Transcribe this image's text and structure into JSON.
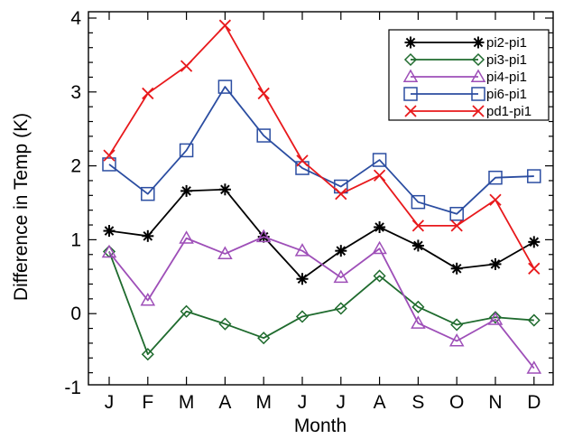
{
  "chart_data": {
    "type": "line",
    "title": "",
    "xlabel": "Month",
    "ylabel": "Difference in Temp (K)",
    "categories": [
      "J",
      "F",
      "M",
      "A",
      "M",
      "J",
      "J",
      "A",
      "S",
      "O",
      "N",
      "D"
    ],
    "ylim": [
      -1.2,
      4.1
    ],
    "yticks": [
      -1,
      0,
      1,
      2,
      3,
      4
    ],
    "grid": false,
    "legend_position": "top-right",
    "series": [
      {
        "name": "pi2-pi1",
        "color": "#000000",
        "marker": "asterisk",
        "values": [
          1.12,
          1.05,
          1.66,
          1.68,
          1.04,
          0.47,
          0.85,
          1.17,
          0.92,
          0.61,
          0.67,
          0.97
        ]
      },
      {
        "name": "pi3-pi1",
        "color": "#1f6b2e",
        "marker": "diamond",
        "values": [
          0.84,
          -0.55,
          0.03,
          -0.14,
          -0.33,
          -0.04,
          0.07,
          0.51,
          0.09,
          -0.15,
          -0.05,
          -0.09
        ]
      },
      {
        "name": "pi4-pi1",
        "color": "#9e4fb8",
        "marker": "triangle",
        "values": [
          0.83,
          0.18,
          1.02,
          0.81,
          1.04,
          0.85,
          0.49,
          0.88,
          -0.13,
          -0.37,
          -0.08,
          -0.74
        ]
      },
      {
        "name": "pi6-pi1",
        "color": "#2b4da1",
        "marker": "square",
        "values": [
          2.02,
          1.62,
          2.21,
          3.07,
          2.41,
          1.97,
          1.72,
          2.08,
          1.51,
          1.35,
          1.84,
          1.86
        ]
      },
      {
        "name": "pd1-pi1",
        "color": "#e8191c",
        "marker": "x",
        "values": [
          2.14,
          2.98,
          3.35,
          3.9,
          2.98,
          2.07,
          1.62,
          1.87,
          1.19,
          1.19,
          1.54,
          0.61
        ]
      }
    ]
  }
}
